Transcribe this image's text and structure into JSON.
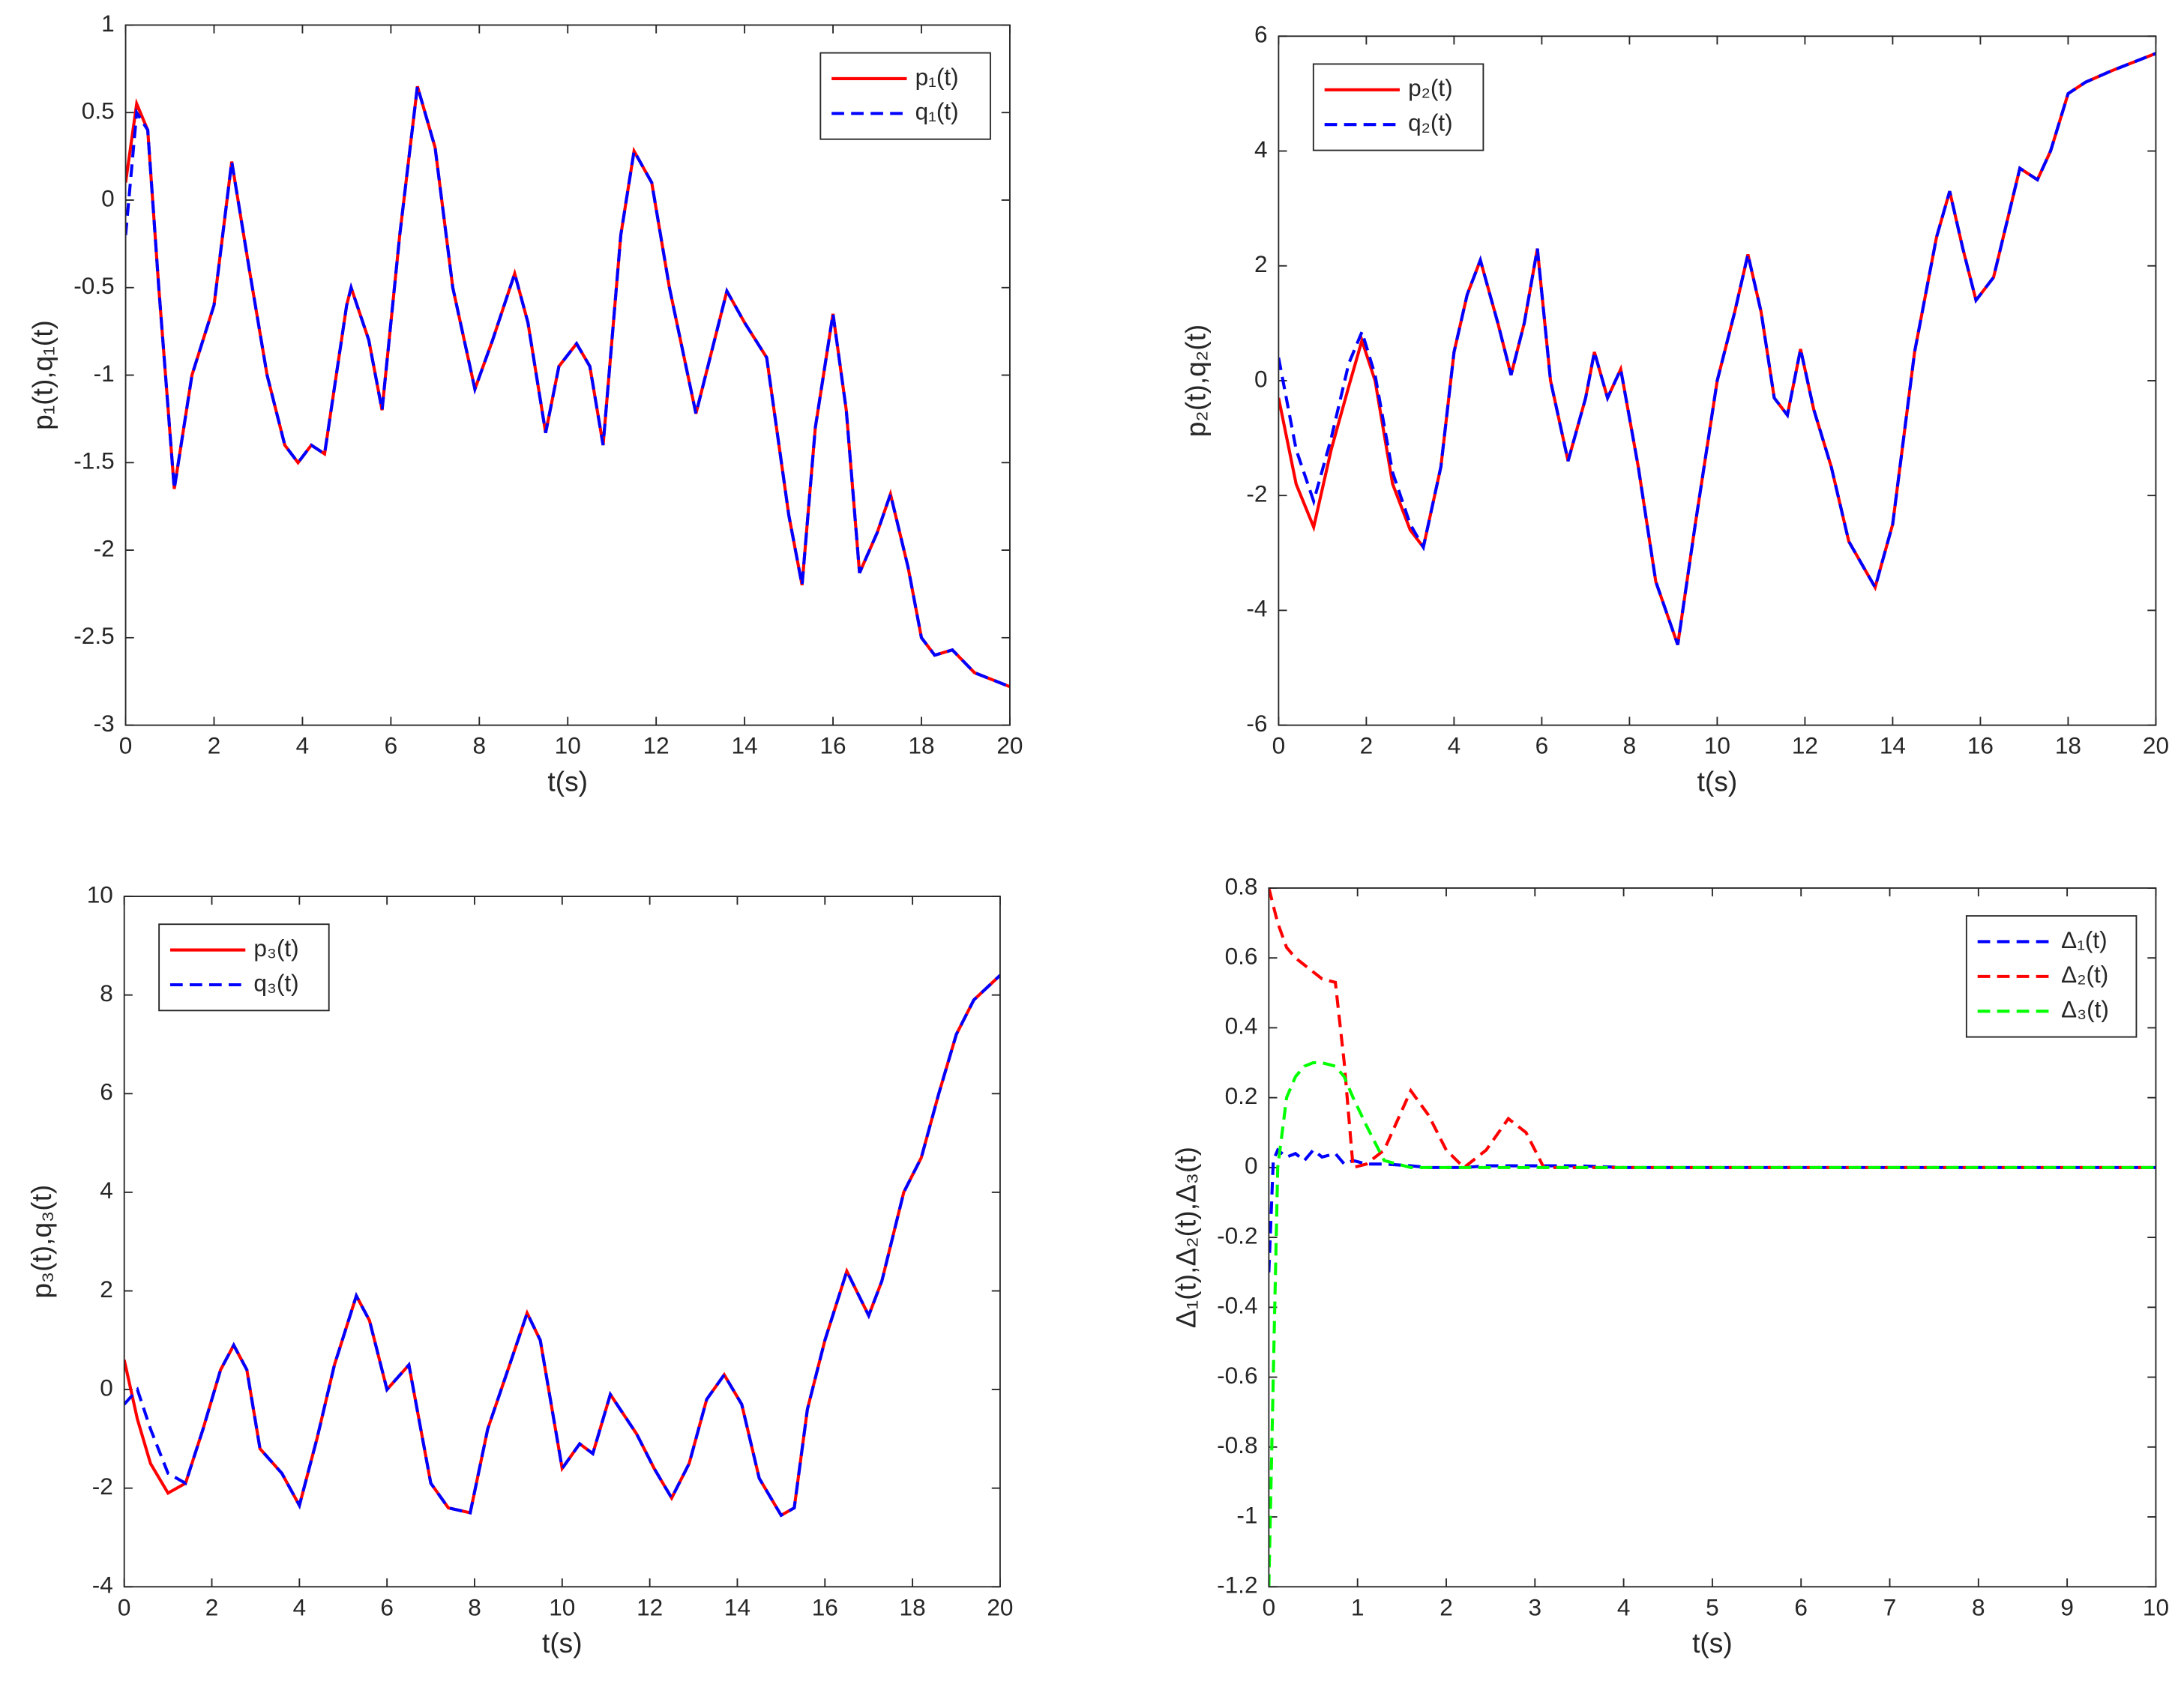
{
  "chart_data": [
    {
      "type": "line",
      "xlabel": "t(s)",
      "ylabel": "p₁(t),q₁(t)",
      "xlim": [
        0,
        20
      ],
      "ylim": [
        -3,
        1
      ],
      "xticks": [
        0,
        2,
        4,
        6,
        8,
        10,
        12,
        14,
        16,
        18,
        20
      ],
      "yticks": [
        -3,
        -2.5,
        -2,
        -1.5,
        -1,
        -0.5,
        0,
        0.5,
        1
      ],
      "legend": "upper right",
      "x": [
        0,
        0.25,
        0.5,
        0.75,
        1.1,
        1.5,
        2,
        2.4,
        2.8,
        3.2,
        3.6,
        3.9,
        4.2,
        4.5,
        5,
        5.1,
        5.5,
        5.8,
        6.2,
        6.6,
        7,
        7.4,
        7.9,
        8.3,
        8.8,
        9.1,
        9.5,
        9.8,
        10.2,
        10.5,
        10.8,
        11.2,
        11.5,
        11.9,
        12.3,
        12.9,
        13.6,
        14,
        14.5,
        15,
        15.3,
        15.6,
        16,
        16.3,
        16.6,
        17,
        17.3,
        17.7,
        18,
        18.3,
        18.7,
        19.2,
        20
      ],
      "series": [
        {
          "name": "p₁(t)",
          "color": "#ff0000",
          "dash": false,
          "values": [
            0.1,
            0.55,
            0.4,
            -0.5,
            -1.65,
            -1.0,
            -0.6,
            0.22,
            -0.4,
            -1.0,
            -1.4,
            -1.5,
            -1.4,
            -1.45,
            -0.6,
            -0.5,
            -0.8,
            -1.2,
            -0.2,
            0.65,
            0.3,
            -0.5,
            -1.08,
            -0.8,
            -0.42,
            -0.7,
            -1.33,
            -0.95,
            -0.82,
            -0.95,
            -1.4,
            -0.2,
            0.28,
            0.1,
            -0.5,
            -1.22,
            -0.52,
            -0.7,
            -0.9,
            -1.8,
            -2.2,
            -1.3,
            -0.65,
            -1.2,
            -2.13,
            -1.9,
            -1.68,
            -2.1,
            -2.5,
            -2.6,
            -2.57,
            -2.7,
            -2.78
          ]
        },
        {
          "name": "q₁(t)",
          "color": "#0000ff",
          "dash": true,
          "values": [
            -0.2,
            0.5,
            0.4,
            -0.5,
            -1.65,
            -1.0,
            -0.6,
            0.22,
            -0.4,
            -1.0,
            -1.4,
            -1.5,
            -1.4,
            -1.45,
            -0.6,
            -0.5,
            -0.8,
            -1.2,
            -0.2,
            0.65,
            0.3,
            -0.5,
            -1.08,
            -0.8,
            -0.42,
            -0.7,
            -1.33,
            -0.95,
            -0.82,
            -0.95,
            -1.4,
            -0.2,
            0.28,
            0.1,
            -0.5,
            -1.22,
            -0.52,
            -0.7,
            -0.9,
            -1.8,
            -2.2,
            -1.3,
            -0.65,
            -1.2,
            -2.13,
            -1.9,
            -1.68,
            -2.1,
            -2.5,
            -2.6,
            -2.57,
            -2.7,
            -2.78
          ]
        }
      ]
    },
    {
      "type": "line",
      "xlabel": "t(s)",
      "ylabel": "p₂(t),q₂(t)",
      "xlim": [
        0,
        20
      ],
      "ylim": [
        -6,
        6
      ],
      "xticks": [
        0,
        2,
        4,
        6,
        8,
        10,
        12,
        14,
        16,
        18,
        20
      ],
      "yticks": [
        -6,
        -4,
        -2,
        0,
        2,
        4,
        6
      ],
      "legend": "upper left",
      "x": [
        0,
        0.4,
        0.8,
        1.2,
        1.6,
        1.9,
        2.2,
        2.6,
        3.0,
        3.3,
        3.7,
        4.0,
        4.3,
        4.6,
        5.0,
        5.3,
        5.6,
        5.9,
        6.2,
        6.6,
        7.0,
        7.2,
        7.5,
        7.8,
        8.2,
        8.6,
        9.1,
        9.5,
        10.0,
        10.4,
        10.7,
        11.0,
        11.3,
        11.6,
        11.9,
        12.2,
        12.6,
        13.0,
        13.6,
        14.0,
        14.5,
        15.0,
        15.3,
        15.6,
        15.9,
        16.3,
        16.9,
        17.3,
        17.6,
        18.0,
        18.4,
        19.0,
        20
      ],
      "series": [
        {
          "name": "p₂(t)",
          "color": "#ff0000",
          "dash": false,
          "values": [
            -0.3,
            -1.8,
            -2.55,
            -1.2,
            -0.1,
            0.7,
            0.0,
            -1.8,
            -2.6,
            -2.9,
            -1.5,
            0.5,
            1.5,
            2.1,
            1.0,
            0.1,
            1.0,
            2.3,
            0.0,
            -1.4,
            -0.3,
            0.5,
            -0.3,
            0.2,
            -1.5,
            -3.5,
            -4.6,
            -2.5,
            0.0,
            1.2,
            2.2,
            1.2,
            -0.3,
            -0.6,
            0.55,
            -0.5,
            -1.5,
            -2.8,
            -3.6,
            -2.5,
            0.5,
            2.5,
            3.3,
            2.3,
            1.4,
            1.8,
            3.7,
            3.5,
            4.0,
            5.0,
            5.2,
            5.4,
            5.7
          ]
        },
        {
          "name": "q₂(t)",
          "color": "#0000ff",
          "dash": true,
          "values": [
            0.4,
            -1.2,
            -2.1,
            -1.0,
            0.3,
            0.85,
            0.1,
            -1.6,
            -2.5,
            -2.9,
            -1.5,
            0.5,
            1.5,
            2.1,
            1.0,
            0.1,
            1.0,
            2.3,
            0.0,
            -1.4,
            -0.3,
            0.5,
            -0.3,
            0.2,
            -1.5,
            -3.5,
            -4.6,
            -2.5,
            0.0,
            1.2,
            2.2,
            1.2,
            -0.3,
            -0.6,
            0.55,
            -0.5,
            -1.5,
            -2.8,
            -3.6,
            -2.5,
            0.5,
            2.5,
            3.3,
            2.3,
            1.4,
            1.8,
            3.7,
            3.5,
            4.0,
            5.0,
            5.2,
            5.4,
            5.7
          ]
        }
      ]
    },
    {
      "type": "line",
      "xlabel": "t(s)",
      "ylabel": "p₃(t),q₃(t)",
      "xlim": [
        0,
        20
      ],
      "ylim": [
        -4,
        10
      ],
      "xticks": [
        0,
        2,
        4,
        6,
        8,
        10,
        12,
        14,
        16,
        18,
        20
      ],
      "yticks": [
        -4,
        -2,
        0,
        2,
        4,
        6,
        8,
        10
      ],
      "legend": "upper left",
      "x": [
        0,
        0.3,
        0.6,
        1.0,
        1.4,
        1.8,
        2.2,
        2.5,
        2.8,
        3.1,
        3.6,
        4.0,
        4.4,
        4.8,
        5.3,
        5.6,
        6.0,
        6.5,
        7.0,
        7.4,
        7.9,
        8.3,
        8.8,
        9.2,
        9.5,
        10.0,
        10.4,
        10.7,
        11.1,
        11.4,
        11.7,
        12.1,
        12.5,
        12.9,
        13.3,
        13.7,
        14.1,
        14.5,
        15.0,
        15.3,
        15.6,
        16.0,
        16.5,
        17.0,
        17.3,
        17.8,
        18.2,
        18.6,
        19.0,
        19.4,
        20
      ],
      "series": [
        {
          "name": "p₃(t)",
          "color": "#ff0000",
          "dash": false,
          "values": [
            0.6,
            -0.6,
            -1.5,
            -2.1,
            -1.9,
            -0.8,
            0.4,
            0.9,
            0.4,
            -1.2,
            -1.7,
            -2.35,
            -1.0,
            0.5,
            1.9,
            1.4,
            0.0,
            0.5,
            -1.9,
            -2.4,
            -2.5,
            -0.8,
            0.5,
            1.55,
            1.0,
            -1.6,
            -1.1,
            -1.3,
            -0.1,
            -0.5,
            -0.9,
            -1.6,
            -2.2,
            -1.5,
            -0.2,
            0.3,
            -0.3,
            -1.8,
            -2.55,
            -2.4,
            -0.4,
            1.0,
            2.4,
            1.5,
            2.2,
            4.0,
            4.7,
            6.0,
            7.2,
            7.9,
            8.4
          ]
        },
        {
          "name": "q₃(t)",
          "color": "#0000ff",
          "dash": true,
          "values": [
            -0.3,
            0.0,
            -0.8,
            -1.7,
            -1.9,
            -0.8,
            0.4,
            0.9,
            0.4,
            -1.2,
            -1.7,
            -2.35,
            -1.0,
            0.5,
            1.9,
            1.4,
            0.0,
            0.5,
            -1.9,
            -2.4,
            -2.5,
            -0.8,
            0.5,
            1.55,
            1.0,
            -1.6,
            -1.1,
            -1.3,
            -0.1,
            -0.5,
            -0.9,
            -1.6,
            -2.2,
            -1.5,
            -0.2,
            0.3,
            -0.3,
            -1.8,
            -2.55,
            -2.4,
            -0.4,
            1.0,
            2.4,
            1.5,
            2.2,
            4.0,
            4.7,
            6.0,
            7.2,
            7.9,
            8.4
          ]
        }
      ]
    },
    {
      "type": "line",
      "xlabel": "t(s)",
      "ylabel": "Δ₁(t),Δ₂(t),Δ₃(t)",
      "xlim": [
        0,
        10
      ],
      "ylim": [
        -1.2,
        0.8
      ],
      "xticks": [
        0,
        1,
        2,
        3,
        4,
        5,
        6,
        7,
        8,
        9,
        10
      ],
      "yticks": [
        -1.2,
        -1,
        -0.8,
        -0.6,
        -0.4,
        -0.2,
        0,
        0.2,
        0.4,
        0.6,
        0.8
      ],
      "legend": "upper right",
      "x": [
        0,
        0.05,
        0.1,
        0.2,
        0.3,
        0.4,
        0.5,
        0.6,
        0.75,
        0.85,
        0.95,
        1.1,
        1.3,
        1.6,
        1.8,
        2.0,
        2.2,
        2.45,
        2.7,
        2.9,
        3.1,
        3.5,
        4,
        5,
        6,
        7,
        8,
        9,
        10
      ],
      "series": [
        {
          "name": "Δ₁(t)",
          "color": "#0000ff",
          "dash": true,
          "values": [
            -0.3,
            0.02,
            0.05,
            0.03,
            0.04,
            0.02,
            0.05,
            0.03,
            0.04,
            0.01,
            0.02,
            0.01,
            0.01,
            0.005,
            0,
            0,
            0,
            0.005,
            0.005,
            0.005,
            0.005,
            0.005,
            0,
            0,
            0,
            0,
            0,
            0,
            0
          ]
        },
        {
          "name": "Δ₂(t)",
          "color": "#ff0000",
          "dash": true,
          "values": [
            0.8,
            0.75,
            0.7,
            0.63,
            0.6,
            0.58,
            0.56,
            0.54,
            0.53,
            0.3,
            0,
            0.01,
            0.05,
            0.22,
            0.15,
            0.05,
            0,
            0.05,
            0.14,
            0.1,
            0,
            0,
            0,
            0,
            0,
            0,
            0,
            0,
            0
          ]
        },
        {
          "name": "Δ₃(t)",
          "color": "#00ff00",
          "dash": true,
          "values": [
            -1.2,
            -0.6,
            0.0,
            0.2,
            0.26,
            0.29,
            0.3,
            0.3,
            0.29,
            0.26,
            0.2,
            0.12,
            0.02,
            0,
            0,
            0,
            0,
            0,
            0,
            0,
            0,
            0,
            0,
            0,
            0,
            0,
            0,
            0,
            0
          ]
        }
      ]
    }
  ]
}
